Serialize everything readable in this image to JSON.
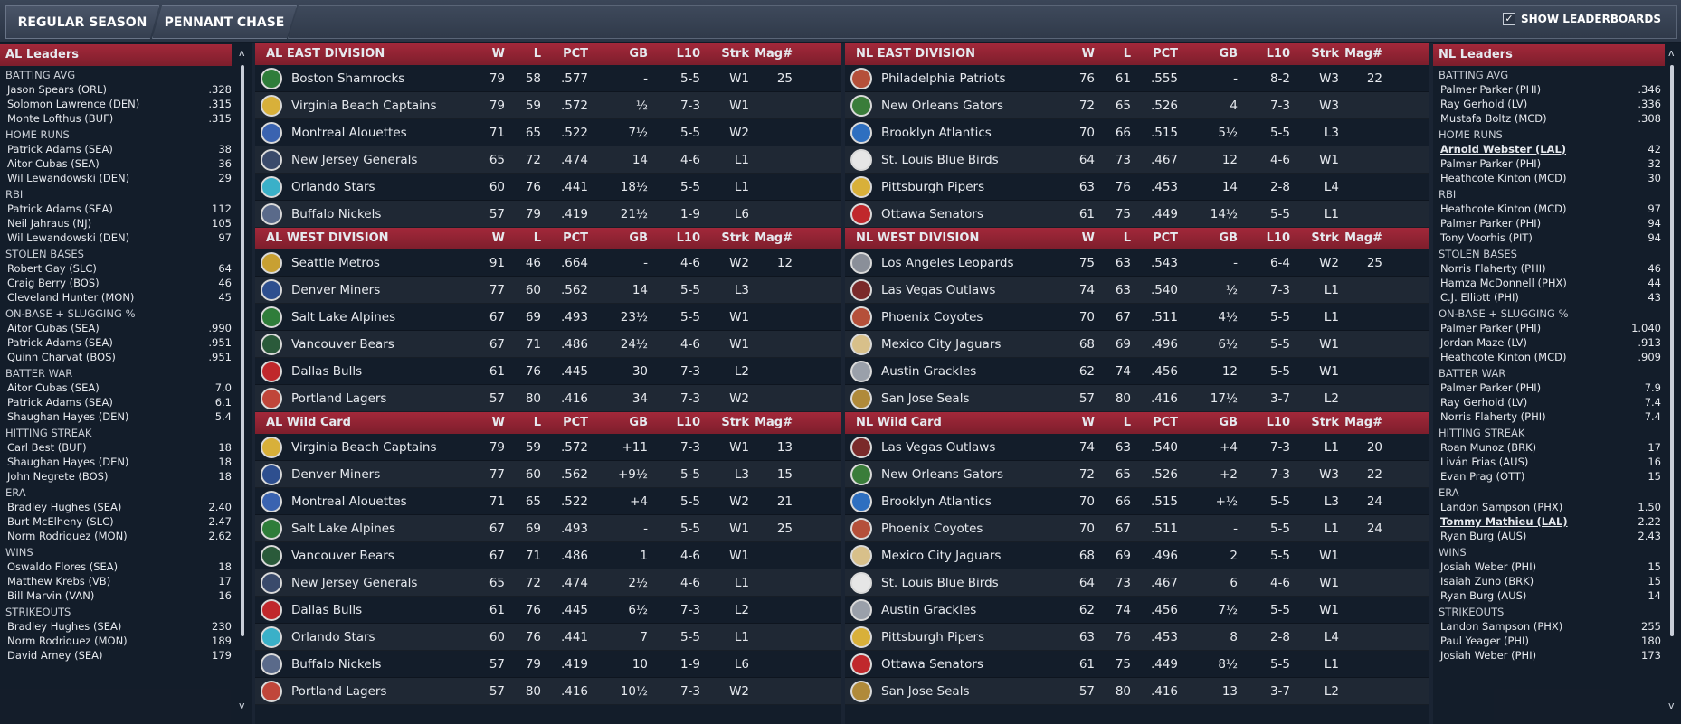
{
  "tabs": {
    "regular": "REGULAR SEASON",
    "pennant": "PENNANT CHASE"
  },
  "show_leaderboards": "SHOW LEADERBOARDS",
  "checkmark": "✓",
  "al_leaders": {
    "title": "AL Leaders",
    "categories": [
      {
        "name": "BATTING AVG",
        "rows": [
          [
            "Jason Spears (ORL)",
            ".328"
          ],
          [
            "Solomon Lawrence (DEN)",
            ".315"
          ],
          [
            "Monte Lofthus (BUF)",
            ".315"
          ]
        ]
      },
      {
        "name": "HOME RUNS",
        "rows": [
          [
            "Patrick Adams (SEA)",
            "38"
          ],
          [
            "Aitor Cubas (SEA)",
            "36"
          ],
          [
            "Wil Lewandowski (DEN)",
            "29"
          ]
        ]
      },
      {
        "name": "RBI",
        "rows": [
          [
            "Patrick Adams (SEA)",
            "112"
          ],
          [
            "Neil Jahraus (NJ)",
            "105"
          ],
          [
            "Wil Lewandowski (DEN)",
            "97"
          ]
        ]
      },
      {
        "name": "STOLEN BASES",
        "rows": [
          [
            "Robert Gay (SLC)",
            "64"
          ],
          [
            "Craig Berry (BOS)",
            "46"
          ],
          [
            "Cleveland Hunter (MON)",
            "45"
          ]
        ]
      },
      {
        "name": "ON-BASE + SLUGGING %",
        "rows": [
          [
            "Aitor Cubas (SEA)",
            ".990"
          ],
          [
            "Patrick Adams (SEA)",
            ".951"
          ],
          [
            "Quinn Charvat (BOS)",
            ".951"
          ]
        ]
      },
      {
        "name": "BATTER WAR",
        "rows": [
          [
            "Aitor Cubas (SEA)",
            "7.0"
          ],
          [
            "Patrick Adams (SEA)",
            "6.1"
          ],
          [
            "Shaughan Hayes (DEN)",
            "5.4"
          ]
        ]
      },
      {
        "name": "HITTING STREAK",
        "rows": [
          [
            "Carl Best (BUF)",
            "18"
          ],
          [
            "Shaughan Hayes (DEN)",
            "18"
          ],
          [
            "John Negrete (BOS)",
            "18"
          ]
        ]
      },
      {
        "name": "ERA",
        "rows": [
          [
            "Bradley Hughes (SEA)",
            "2.40"
          ],
          [
            "Burt McElheny (SLC)",
            "2.47"
          ],
          [
            "Norm Rodriquez (MON)",
            "2.62"
          ]
        ]
      },
      {
        "name": "WINS",
        "rows": [
          [
            "Oswaldo Flores (SEA)",
            "18"
          ],
          [
            "Matthew Krebs (VB)",
            "17"
          ],
          [
            "Bill Marvin (VAN)",
            "16"
          ]
        ]
      },
      {
        "name": "STRIKEOUTS",
        "rows": [
          [
            "Bradley Hughes (SEA)",
            "230"
          ],
          [
            "Norm Rodriquez (MON)",
            "189"
          ],
          [
            "David Arney (SEA)",
            "179"
          ]
        ]
      }
    ]
  },
  "nl_leaders": {
    "title": "NL Leaders",
    "categories": [
      {
        "name": "BATTING AVG",
        "rows": [
          [
            "Palmer Parker (PHI)",
            ".346"
          ],
          [
            "Ray Gerhold (LV)",
            ".336"
          ],
          [
            "Mustafa Boltz (MCD)",
            ".308"
          ]
        ]
      },
      {
        "name": "HOME RUNS",
        "rows": [
          [
            "Arnold Webster (LAL)",
            "42"
          ],
          [
            "Palmer Parker (PHI)",
            "32"
          ],
          [
            "Heathcote Kinton (MCD)",
            "30"
          ]
        ]
      },
      {
        "name": "RBI",
        "rows": [
          [
            "Heathcote Kinton (MCD)",
            "97"
          ],
          [
            "Palmer Parker (PHI)",
            "94"
          ],
          [
            "Tony Voorhis (PIT)",
            "94"
          ]
        ]
      },
      {
        "name": "STOLEN BASES",
        "rows": [
          [
            "Norris Flaherty (PHI)",
            "46"
          ],
          [
            "Hamza McDonnell (PHX)",
            "44"
          ],
          [
            "C.J. Elliott (PHI)",
            "43"
          ]
        ]
      },
      {
        "name": "ON-BASE + SLUGGING %",
        "rows": [
          [
            "Palmer Parker (PHI)",
            "1.040"
          ],
          [
            "Jordan Maze (LV)",
            ".913"
          ],
          [
            "Heathcote Kinton (MCD)",
            ".909"
          ]
        ]
      },
      {
        "name": "BATTER WAR",
        "rows": [
          [
            "Palmer Parker (PHI)",
            "7.9"
          ],
          [
            "Ray Gerhold (LV)",
            "7.4"
          ],
          [
            "Norris Flaherty (PHI)",
            "7.4"
          ]
        ]
      },
      {
        "name": "HITTING STREAK",
        "rows": [
          [
            "Roan Munoz (BRK)",
            "17"
          ],
          [
            "Liván Frias (AUS)",
            "16"
          ],
          [
            "Evan Prag (OTT)",
            "15"
          ]
        ]
      },
      {
        "name": "ERA",
        "rows": [
          [
            "Landon Sampson (PHX)",
            "1.50"
          ],
          [
            "Tommy Mathieu (LAL)",
            "2.22"
          ],
          [
            "Ryan Burg (AUS)",
            "2.43"
          ]
        ]
      },
      {
        "name": "WINS",
        "rows": [
          [
            "Josiah Weber (PHI)",
            "15"
          ],
          [
            "Isaiah Zuno (BRK)",
            "15"
          ],
          [
            "Ryan Burg (AUS)",
            "14"
          ]
        ]
      },
      {
        "name": "STRIKEOUTS",
        "rows": [
          [
            "Landon Sampson (PHX)",
            "255"
          ],
          [
            "Paul Yeager (PHI)",
            "180"
          ],
          [
            "Josiah Weber (PHI)",
            "173"
          ]
        ]
      }
    ]
  },
  "columns": [
    "W",
    "L",
    "PCT",
    "GB",
    "L10",
    "Strk",
    "Mag#"
  ],
  "divisions": {
    "al_east": {
      "title": "AL EAST DIVISION",
      "teams": [
        {
          "name": "Boston Shamrocks",
          "w": "79",
          "l": "58",
          "pct": ".577",
          "gb": "-",
          "l10": "5-5",
          "strk": "W1",
          "mag": "25",
          "color": "#2f7d3a"
        },
        {
          "name": "Virginia Beach Captains",
          "w": "79",
          "l": "59",
          "pct": ".572",
          "gb": "½",
          "l10": "7-3",
          "strk": "W1",
          "mag": "",
          "color": "#d8b03a"
        },
        {
          "name": "Montreal Alouettes",
          "w": "71",
          "l": "65",
          "pct": ".522",
          "gb": "7½",
          "l10": "5-5",
          "strk": "W2",
          "mag": "",
          "color": "#3a63b0"
        },
        {
          "name": "New Jersey Generals",
          "w": "65",
          "l": "72",
          "pct": ".474",
          "gb": "14",
          "l10": "4-6",
          "strk": "L1",
          "mag": "",
          "color": "#3a4a6b"
        },
        {
          "name": "Orlando Stars",
          "w": "60",
          "l": "76",
          "pct": ".441",
          "gb": "18½",
          "l10": "5-5",
          "strk": "L1",
          "mag": "",
          "color": "#3ab0c8"
        },
        {
          "name": "Buffalo Nickels",
          "w": "57",
          "l": "79",
          "pct": ".419",
          "gb": "21½",
          "l10": "1-9",
          "strk": "L6",
          "mag": "",
          "color": "#5a6a8a"
        }
      ]
    },
    "al_west": {
      "title": "AL WEST DIVISION",
      "teams": [
        {
          "name": "Seattle Metros",
          "w": "91",
          "l": "46",
          "pct": ".664",
          "gb": "-",
          "l10": "4-6",
          "strk": "W2",
          "mag": "12",
          "color": "#c8a032"
        },
        {
          "name": "Denver Miners",
          "w": "77",
          "l": "60",
          "pct": ".562",
          "gb": "14",
          "l10": "5-5",
          "strk": "L3",
          "mag": "",
          "color": "#2e4f8f"
        },
        {
          "name": "Salt Lake Alpines",
          "w": "67",
          "l": "69",
          "pct": ".493",
          "gb": "23½",
          "l10": "5-5",
          "strk": "W1",
          "mag": "",
          "color": "#2f7d3a"
        },
        {
          "name": "Vancouver Bears",
          "w": "67",
          "l": "71",
          "pct": ".486",
          "gb": "24½",
          "l10": "4-6",
          "strk": "W1",
          "mag": "",
          "color": "#2a5a3a"
        },
        {
          "name": "Dallas Bulls",
          "w": "61",
          "l": "76",
          "pct": ".445",
          "gb": "30",
          "l10": "7-3",
          "strk": "L2",
          "mag": "",
          "color": "#c0282c"
        },
        {
          "name": "Portland Lagers",
          "w": "57",
          "l": "80",
          "pct": ".416",
          "gb": "34",
          "l10": "7-3",
          "strk": "W2",
          "mag": "",
          "color": "#c0463a"
        }
      ]
    },
    "al_wild": {
      "title": "AL  Wild Card",
      "teams": [
        {
          "name": "Virginia Beach Captains",
          "w": "79",
          "l": "59",
          "pct": ".572",
          "gb": "+11",
          "l10": "7-3",
          "strk": "W1",
          "mag": "13",
          "color": "#d8b03a"
        },
        {
          "name": "Denver Miners",
          "w": "77",
          "l": "60",
          "pct": ".562",
          "gb": "+9½",
          "l10": "5-5",
          "strk": "L3",
          "mag": "15",
          "color": "#2e4f8f"
        },
        {
          "name": "Montreal Alouettes",
          "w": "71",
          "l": "65",
          "pct": ".522",
          "gb": "+4",
          "l10": "5-5",
          "strk": "W2",
          "mag": "21",
          "color": "#3a63b0"
        },
        {
          "name": "Salt Lake Alpines",
          "w": "67",
          "l": "69",
          "pct": ".493",
          "gb": "-",
          "l10": "5-5",
          "strk": "W1",
          "mag": "25",
          "color": "#2f7d3a"
        },
        {
          "name": "Vancouver Bears",
          "w": "67",
          "l": "71",
          "pct": ".486",
          "gb": "1",
          "l10": "4-6",
          "strk": "W1",
          "mag": "",
          "color": "#2a5a3a"
        },
        {
          "name": "New Jersey Generals",
          "w": "65",
          "l": "72",
          "pct": ".474",
          "gb": "2½",
          "l10": "4-6",
          "strk": "L1",
          "mag": "",
          "color": "#3a4a6b"
        },
        {
          "name": "Dallas Bulls",
          "w": "61",
          "l": "76",
          "pct": ".445",
          "gb": "6½",
          "l10": "7-3",
          "strk": "L2",
          "mag": "",
          "color": "#c0282c"
        },
        {
          "name": "Orlando Stars",
          "w": "60",
          "l": "76",
          "pct": ".441",
          "gb": "7",
          "l10": "5-5",
          "strk": "L1",
          "mag": "",
          "color": "#3ab0c8"
        },
        {
          "name": "Buffalo Nickels",
          "w": "57",
          "l": "79",
          "pct": ".419",
          "gb": "10",
          "l10": "1-9",
          "strk": "L6",
          "mag": "",
          "color": "#5a6a8a"
        },
        {
          "name": "Portland Lagers",
          "w": "57",
          "l": "80",
          "pct": ".416",
          "gb": "10½",
          "l10": "7-3",
          "strk": "W2",
          "mag": "",
          "color": "#c0463a"
        }
      ]
    },
    "nl_east": {
      "title": "NL EAST DIVISION",
      "teams": [
        {
          "name": "Philadelphia Patriots",
          "w": "76",
          "l": "61",
          "pct": ".555",
          "gb": "-",
          "l10": "8-2",
          "strk": "W3",
          "mag": "22",
          "color": "#b5503a"
        },
        {
          "name": "New Orleans Gators",
          "w": "72",
          "l": "65",
          "pct": ".526",
          "gb": "4",
          "l10": "7-3",
          "strk": "W3",
          "mag": "",
          "color": "#3a7d3a"
        },
        {
          "name": "Brooklyn Atlantics",
          "w": "70",
          "l": "66",
          "pct": ".515",
          "gb": "5½",
          "l10": "5-5",
          "strk": "L3",
          "mag": "",
          "color": "#2e6fc0"
        },
        {
          "name": "St. Louis Blue Birds",
          "w": "64",
          "l": "73",
          "pct": ".467",
          "gb": "12",
          "l10": "4-6",
          "strk": "W1",
          "mag": "",
          "color": "#e6e6e6"
        },
        {
          "name": "Pittsburgh Pipers",
          "w": "63",
          "l": "76",
          "pct": ".453",
          "gb": "14",
          "l10": "2-8",
          "strk": "L4",
          "mag": "",
          "color": "#d8b03a"
        },
        {
          "name": "Ottawa Senators",
          "w": "61",
          "l": "75",
          "pct": ".449",
          "gb": "14½",
          "l10": "5-5",
          "strk": "L1",
          "mag": "",
          "color": "#c0282c"
        }
      ]
    },
    "nl_west": {
      "title": "NL WEST DIVISION",
      "teams": [
        {
          "name": "Los Angeles Leopards",
          "w": "75",
          "l": "63",
          "pct": ".543",
          "gb": "-",
          "l10": "6-4",
          "strk": "W2",
          "mag": "25",
          "color": "#8a8f99",
          "link": true
        },
        {
          "name": "Las Vegas Outlaws",
          "w": "74",
          "l": "63",
          "pct": ".540",
          "gb": "½",
          "l10": "7-3",
          "strk": "L1",
          "mag": "",
          "color": "#7a2a2a"
        },
        {
          "name": "Phoenix Coyotes",
          "w": "70",
          "l": "67",
          "pct": ".511",
          "gb": "4½",
          "l10": "5-5",
          "strk": "L1",
          "mag": "",
          "color": "#b5503a"
        },
        {
          "name": "Mexico City Jaguars",
          "w": "68",
          "l": "69",
          "pct": ".496",
          "gb": "6½",
          "l10": "5-5",
          "strk": "W1",
          "mag": "",
          "color": "#d8c08a"
        },
        {
          "name": "Austin Grackles",
          "w": "62",
          "l": "74",
          "pct": ".456",
          "gb": "12",
          "l10": "5-5",
          "strk": "W1",
          "mag": "",
          "color": "#9aa0aa"
        },
        {
          "name": "San Jose Seals",
          "w": "57",
          "l": "80",
          "pct": ".416",
          "gb": "17½",
          "l10": "3-7",
          "strk": "L2",
          "mag": "",
          "color": "#b08a3a"
        }
      ]
    },
    "nl_wild": {
      "title": "NL  Wild Card",
      "teams": [
        {
          "name": "Las Vegas Outlaws",
          "w": "74",
          "l": "63",
          "pct": ".540",
          "gb": "+4",
          "l10": "7-3",
          "strk": "L1",
          "mag": "20",
          "color": "#7a2a2a"
        },
        {
          "name": "New Orleans Gators",
          "w": "72",
          "l": "65",
          "pct": ".526",
          "gb": "+2",
          "l10": "7-3",
          "strk": "W3",
          "mag": "22",
          "color": "#3a7d3a"
        },
        {
          "name": "Brooklyn Atlantics",
          "w": "70",
          "l": "66",
          "pct": ".515",
          "gb": "+½",
          "l10": "5-5",
          "strk": "L3",
          "mag": "24",
          "color": "#2e6fc0"
        },
        {
          "name": "Phoenix Coyotes",
          "w": "70",
          "l": "67",
          "pct": ".511",
          "gb": "-",
          "l10": "5-5",
          "strk": "L1",
          "mag": "24",
          "color": "#b5503a"
        },
        {
          "name": "Mexico City Jaguars",
          "w": "68",
          "l": "69",
          "pct": ".496",
          "gb": "2",
          "l10": "5-5",
          "strk": "W1",
          "mag": "",
          "color": "#d8c08a"
        },
        {
          "name": "St. Louis Blue Birds",
          "w": "64",
          "l": "73",
          "pct": ".467",
          "gb": "6",
          "l10": "4-6",
          "strk": "W1",
          "mag": "",
          "color": "#e6e6e6"
        },
        {
          "name": "Austin Grackles",
          "w": "62",
          "l": "74",
          "pct": ".456",
          "gb": "7½",
          "l10": "5-5",
          "strk": "W1",
          "mag": "",
          "color": "#9aa0aa"
        },
        {
          "name": "Pittsburgh Pipers",
          "w": "63",
          "l": "76",
          "pct": ".453",
          "gb": "8",
          "l10": "2-8",
          "strk": "L4",
          "mag": "",
          "color": "#d8b03a"
        },
        {
          "name": "Ottawa Senators",
          "w": "61",
          "l": "75",
          "pct": ".449",
          "gb": "8½",
          "l10": "5-5",
          "strk": "L1",
          "mag": "",
          "color": "#c0282c"
        },
        {
          "name": "San Jose Seals",
          "w": "57",
          "l": "80",
          "pct": ".416",
          "gb": "13",
          "l10": "3-7",
          "strk": "L2",
          "mag": "",
          "color": "#b08a3a"
        }
      ]
    }
  },
  "nl_leader_links": [
    "Arnold Webster (LAL)",
    "Tommy Mathieu (LAL)"
  ],
  "scroll_up": "ʌ",
  "scroll_down": "v"
}
